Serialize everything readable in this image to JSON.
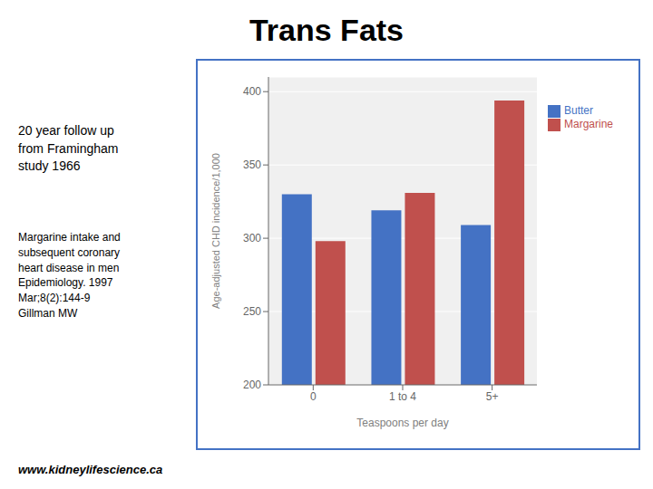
{
  "chart_data": {
    "type": "bar",
    "title": "Trans Fats",
    "annotations": [
      "20 year follow up",
      "from Framingham",
      "study 1966",
      "Margarine intake and",
      "subsequent coronary",
      "heart disease in men",
      "Epidemiology. 1997",
      "Mar;8(2):144-9",
      "Gillman MW",
      "www.kidneylifescience.ca"
    ],
    "categories": [
      "0",
      "1 to 4",
      "5+"
    ],
    "series": [
      {
        "name": "Butter",
        "color": "#4472C4",
        "values": [
          330,
          319,
          309
        ]
      },
      {
        "name": "Margarine",
        "color": "#C0504D",
        "values": [
          298,
          331,
          394
        ]
      }
    ],
    "xlabel": "Teaspoons per day",
    "ylabel": "Age-adjusted CHD incidence/1,000",
    "ylim": [
      200,
      410
    ],
    "yticks": [
      200,
      250,
      300,
      350,
      400
    ],
    "grid": true,
    "legend": "right"
  }
}
